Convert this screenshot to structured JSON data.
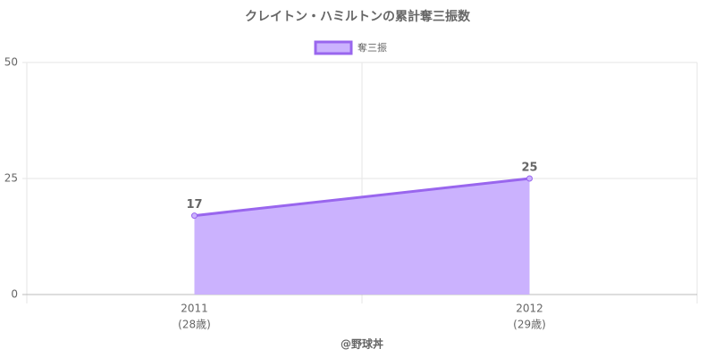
{
  "chart_data": {
    "type": "area",
    "title": "クレイトン・ハミルトンの累計奪三振数",
    "categories": [
      "2011",
      "2012"
    ],
    "category_sublabels": [
      "(28歳)",
      "(29歳)"
    ],
    "x_label": "@野球丼",
    "series": [
      {
        "name": "奪三振",
        "color": "#9966ee",
        "fill": "#cbb2fe",
        "values": [
          17,
          25
        ]
      }
    ],
    "ylim": [
      0,
      50
    ],
    "yticks": [
      0,
      25,
      50
    ],
    "grid": true,
    "legend": "top"
  }
}
